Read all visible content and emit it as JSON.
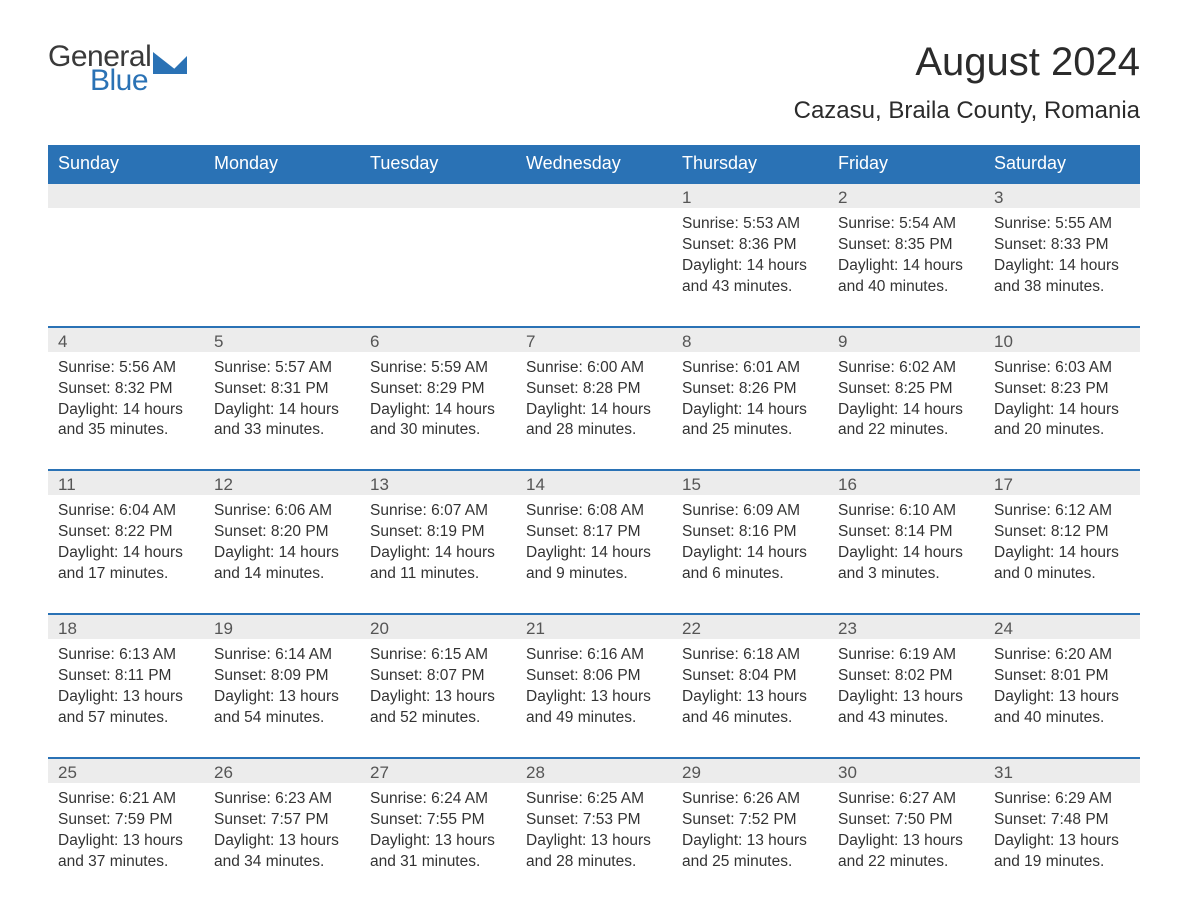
{
  "logo": {
    "general": "General",
    "blue": "Blue",
    "tri_color": "#2a72b5"
  },
  "title": "August 2024",
  "location": "Cazasu, Braila County, Romania",
  "colors": {
    "header_bg": "#2a72b5",
    "header_text": "#ffffff",
    "daynum_bg": "#ececec",
    "body_text": "#333333",
    "rule": "#2a72b5",
    "page_bg": "#ffffff"
  },
  "typography": {
    "month_title_fontsize": 40,
    "location_fontsize": 24,
    "dayhead_fontsize": 18,
    "daynum_fontsize": 17,
    "body_fontsize": 15.5
  },
  "day_headers": [
    "Sunday",
    "Monday",
    "Tuesday",
    "Wednesday",
    "Thursday",
    "Friday",
    "Saturday"
  ],
  "weeks": [
    [
      null,
      null,
      null,
      null,
      {
        "num": "1",
        "sunrise": "5:53 AM",
        "sunset": "8:36 PM",
        "daylight": "14 hours and 43 minutes."
      },
      {
        "num": "2",
        "sunrise": "5:54 AM",
        "sunset": "8:35 PM",
        "daylight": "14 hours and 40 minutes."
      },
      {
        "num": "3",
        "sunrise": "5:55 AM",
        "sunset": "8:33 PM",
        "daylight": "14 hours and 38 minutes."
      }
    ],
    [
      {
        "num": "4",
        "sunrise": "5:56 AM",
        "sunset": "8:32 PM",
        "daylight": "14 hours and 35 minutes."
      },
      {
        "num": "5",
        "sunrise": "5:57 AM",
        "sunset": "8:31 PM",
        "daylight": "14 hours and 33 minutes."
      },
      {
        "num": "6",
        "sunrise": "5:59 AM",
        "sunset": "8:29 PM",
        "daylight": "14 hours and 30 minutes."
      },
      {
        "num": "7",
        "sunrise": "6:00 AM",
        "sunset": "8:28 PM",
        "daylight": "14 hours and 28 minutes."
      },
      {
        "num": "8",
        "sunrise": "6:01 AM",
        "sunset": "8:26 PM",
        "daylight": "14 hours and 25 minutes."
      },
      {
        "num": "9",
        "sunrise": "6:02 AM",
        "sunset": "8:25 PM",
        "daylight": "14 hours and 22 minutes."
      },
      {
        "num": "10",
        "sunrise": "6:03 AM",
        "sunset": "8:23 PM",
        "daylight": "14 hours and 20 minutes."
      }
    ],
    [
      {
        "num": "11",
        "sunrise": "6:04 AM",
        "sunset": "8:22 PM",
        "daylight": "14 hours and 17 minutes."
      },
      {
        "num": "12",
        "sunrise": "6:06 AM",
        "sunset": "8:20 PM",
        "daylight": "14 hours and 14 minutes."
      },
      {
        "num": "13",
        "sunrise": "6:07 AM",
        "sunset": "8:19 PM",
        "daylight": "14 hours and 11 minutes."
      },
      {
        "num": "14",
        "sunrise": "6:08 AM",
        "sunset": "8:17 PM",
        "daylight": "14 hours and 9 minutes."
      },
      {
        "num": "15",
        "sunrise": "6:09 AM",
        "sunset": "8:16 PM",
        "daylight": "14 hours and 6 minutes."
      },
      {
        "num": "16",
        "sunrise": "6:10 AM",
        "sunset": "8:14 PM",
        "daylight": "14 hours and 3 minutes."
      },
      {
        "num": "17",
        "sunrise": "6:12 AM",
        "sunset": "8:12 PM",
        "daylight": "14 hours and 0 minutes."
      }
    ],
    [
      {
        "num": "18",
        "sunrise": "6:13 AM",
        "sunset": "8:11 PM",
        "daylight": "13 hours and 57 minutes."
      },
      {
        "num": "19",
        "sunrise": "6:14 AM",
        "sunset": "8:09 PM",
        "daylight": "13 hours and 54 minutes."
      },
      {
        "num": "20",
        "sunrise": "6:15 AM",
        "sunset": "8:07 PM",
        "daylight": "13 hours and 52 minutes."
      },
      {
        "num": "21",
        "sunrise": "6:16 AM",
        "sunset": "8:06 PM",
        "daylight": "13 hours and 49 minutes."
      },
      {
        "num": "22",
        "sunrise": "6:18 AM",
        "sunset": "8:04 PM",
        "daylight": "13 hours and 46 minutes."
      },
      {
        "num": "23",
        "sunrise": "6:19 AM",
        "sunset": "8:02 PM",
        "daylight": "13 hours and 43 minutes."
      },
      {
        "num": "24",
        "sunrise": "6:20 AM",
        "sunset": "8:01 PM",
        "daylight": "13 hours and 40 minutes."
      }
    ],
    [
      {
        "num": "25",
        "sunrise": "6:21 AM",
        "sunset": "7:59 PM",
        "daylight": "13 hours and 37 minutes."
      },
      {
        "num": "26",
        "sunrise": "6:23 AM",
        "sunset": "7:57 PM",
        "daylight": "13 hours and 34 minutes."
      },
      {
        "num": "27",
        "sunrise": "6:24 AM",
        "sunset": "7:55 PM",
        "daylight": "13 hours and 31 minutes."
      },
      {
        "num": "28",
        "sunrise": "6:25 AM",
        "sunset": "7:53 PM",
        "daylight": "13 hours and 28 minutes."
      },
      {
        "num": "29",
        "sunrise": "6:26 AM",
        "sunset": "7:52 PM",
        "daylight": "13 hours and 25 minutes."
      },
      {
        "num": "30",
        "sunrise": "6:27 AM",
        "sunset": "7:50 PM",
        "daylight": "13 hours and 22 minutes."
      },
      {
        "num": "31",
        "sunrise": "6:29 AM",
        "sunset": "7:48 PM",
        "daylight": "13 hours and 19 minutes."
      }
    ]
  ],
  "labels": {
    "sunrise": "Sunrise: ",
    "sunset": "Sunset: ",
    "daylight": "Daylight: "
  }
}
